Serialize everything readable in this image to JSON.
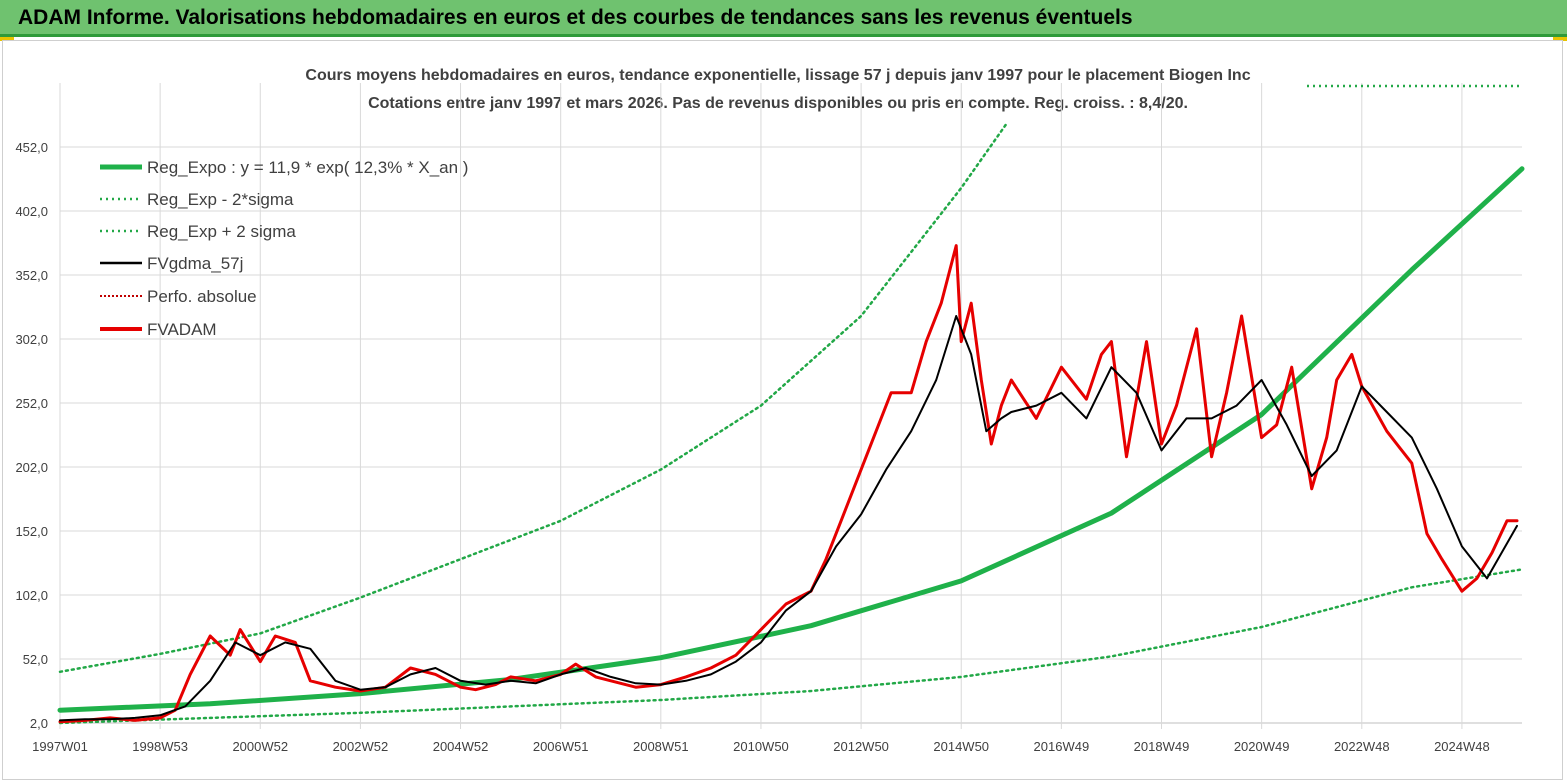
{
  "header": {
    "title": "ADAM Informe. Valorisations hebdomadaires en euros et des courbes de tendances sans les revenus éventuels"
  },
  "colors": {
    "header_bg": "#6fc26f",
    "trend": "#1fb14a",
    "band": "#22a847",
    "smooth": "#000000",
    "fvadam": "#e60000",
    "perfo": "#c00000"
  },
  "chart_data": {
    "type": "line",
    "title": "Cours moyens hebdomadaires en euros, tendance exponentielle, lissage 57 j depuis janv 1997 pour le placement Biogen Inc",
    "subtitle": "Cotations entre janv 1997 et mars 2026. Pas de revenus disponibles ou pris en compte. Reg. croiss. : 8,4/20.",
    "x_range": [
      1997.0,
      2026.2
    ],
    "ylim": [
      2.0,
      502.0
    ],
    "y_ticks": [
      "2,0",
      "52,0",
      "102,0",
      "152,0",
      "202,0",
      "252,0",
      "302,0",
      "352,0",
      "402,0",
      "452,0"
    ],
    "y_tick_values": [
      2,
      52,
      102,
      152,
      202,
      252,
      302,
      352,
      402,
      452
    ],
    "x_ticks": [
      "1997W01",
      "1998W53",
      "2000W52",
      "2002W52",
      "2004W52",
      "2006W51",
      "2008W51",
      "2010W50",
      "2012W50",
      "2014W50",
      "2016W49",
      "2018W49",
      "2020W49",
      "2022W48",
      "2024W48"
    ],
    "x_tick_values": [
      1997.0,
      1999.0,
      2001.0,
      2003.0,
      2005.0,
      2007.0,
      2009.0,
      2011.0,
      2013.0,
      2015.0,
      2017.0,
      2019.0,
      2021.0,
      2023.0,
      2025.0
    ],
    "grid": true,
    "legend_position": "top-left",
    "legend": [
      "Reg_Expo : y = 11,9 * exp( 12,3% * X_an )",
      "Reg_Exp - 2*sigma",
      "Reg_Exp + 2 sigma",
      "FVgdma_57j",
      "Perfo. absolue",
      "FVADAM"
    ],
    "series": [
      {
        "name": "Reg_Expo : y = 11,9 * exp( 12,3% * X_an )",
        "style": "thick",
        "x": [
          1997.0,
          2000.0,
          2003.0,
          2006.0,
          2009.0,
          2012.0,
          2015.0,
          2018.0,
          2021.0,
          2024.0,
          2026.2
        ],
        "values": [
          12,
          17,
          25,
          36,
          53,
          78,
          113,
          166,
          243,
          356,
          435
        ]
      },
      {
        "name": "Reg_Exp - 2*sigma",
        "style": "dotted",
        "x": [
          1997.0,
          2000.0,
          2003.0,
          2006.0,
          2009.0,
          2012.0,
          2015.0,
          2018.0,
          2021.0,
          2024.0,
          2026.2
        ],
        "values": [
          2,
          6,
          10,
          15,
          20,
          27,
          38,
          54,
          77,
          108,
          122
        ]
      },
      {
        "name": "Reg_Exp + 2 sigma",
        "style": "dotted",
        "x": [
          1997.0,
          1999.0,
          2001.0,
          2003.0,
          2005.0,
          2007.0,
          2009.0,
          2011.0,
          2013.0,
          2014.0,
          2015.0,
          2015.9
        ],
        "values": [
          42,
          56,
          72,
          100,
          130,
          160,
          200,
          250,
          320,
          370,
          420,
          470
        ]
      },
      {
        "name": "FVgdma_57j",
        "style": "thin",
        "x": [
          1997.0,
          1997.5,
          1998.0,
          1998.5,
          1999.0,
          1999.5,
          2000.0,
          2000.5,
          2001.0,
          2001.5,
          2002.0,
          2002.5,
          2003.0,
          2003.5,
          2004.0,
          2004.5,
          2005.0,
          2005.5,
          2006.0,
          2006.5,
          2007.0,
          2007.5,
          2008.0,
          2008.5,
          2009.0,
          2009.5,
          2010.0,
          2010.5,
          2011.0,
          2011.5,
          2012.0,
          2012.5,
          2013.0,
          2013.5,
          2014.0,
          2014.5,
          2014.9,
          2015.2,
          2015.5,
          2015.8,
          2016.0,
          2016.5,
          2017.0,
          2017.5,
          2018.0,
          2018.5,
          2019.0,
          2019.5,
          2020.0,
          2020.5,
          2021.0,
          2021.5,
          2022.0,
          2022.5,
          2023.0,
          2023.5,
          2024.0,
          2024.5,
          2025.0,
          2025.5,
          2026.1
        ],
        "values": [
          4,
          5,
          5,
          6,
          8,
          15,
          35,
          65,
          55,
          65,
          60,
          35,
          28,
          30,
          40,
          45,
          35,
          32,
          35,
          33,
          40,
          45,
          38,
          33,
          32,
          35,
          40,
          50,
          65,
          90,
          105,
          140,
          165,
          200,
          230,
          270,
          320,
          290,
          230,
          240,
          245,
          250,
          260,
          240,
          280,
          260,
          215,
          240,
          240,
          250,
          270,
          235,
          195,
          215,
          265,
          245,
          225,
          185,
          140,
          115,
          156
        ]
      },
      {
        "name": "FVADAM",
        "style": "thick",
        "x": [
          1997.0,
          1997.5,
          1998.0,
          1998.5,
          1999.0,
          1999.3,
          1999.6,
          2000.0,
          2000.4,
          2000.6,
          2001.0,
          2001.3,
          2001.7,
          2002.0,
          2002.5,
          2003.0,
          2003.5,
          2004.0,
          2004.5,
          2005.0,
          2005.3,
          2005.7,
          2006.0,
          2006.5,
          2007.0,
          2007.3,
          2007.7,
          2008.0,
          2008.5,
          2009.0,
          2009.5,
          2010.0,
          2010.5,
          2011.0,
          2011.5,
          2012.0,
          2012.3,
          2012.6,
          2013.0,
          2013.3,
          2013.6,
          2014.0,
          2014.3,
          2014.6,
          2014.9,
          2015.0,
          2015.2,
          2015.4,
          2015.6,
          2015.8,
          2016.0,
          2016.5,
          2017.0,
          2017.5,
          2017.8,
          2018.0,
          2018.3,
          2018.7,
          2019.0,
          2019.3,
          2019.7,
          2020.0,
          2020.3,
          2020.6,
          2021.0,
          2021.3,
          2021.6,
          2022.0,
          2022.3,
          2022.5,
          2022.8,
          2023.0,
          2023.5,
          2024.0,
          2024.3,
          2024.6,
          2025.0,
          2025.3,
          2025.6,
          2025.9,
          2026.1
        ],
        "values": [
          3,
          4,
          6,
          4,
          6,
          12,
          40,
          70,
          55,
          75,
          50,
          70,
          65,
          35,
          30,
          27,
          30,
          45,
          40,
          30,
          28,
          32,
          38,
          35,
          40,
          48,
          38,
          35,
          30,
          32,
          38,
          45,
          55,
          75,
          95,
          105,
          130,
          160,
          200,
          230,
          260,
          260,
          300,
          330,
          375,
          300,
          330,
          270,
          220,
          250,
          270,
          240,
          280,
          255,
          290,
          300,
          210,
          300,
          220,
          250,
          310,
          210,
          260,
          320,
          225,
          235,
          280,
          185,
          225,
          270,
          290,
          265,
          230,
          205,
          150,
          130,
          105,
          115,
          135,
          160,
          160
        ]
      },
      {
        "name": "Perfo. absolue",
        "style": "dotted-thin",
        "x": [],
        "values": []
      }
    ]
  }
}
